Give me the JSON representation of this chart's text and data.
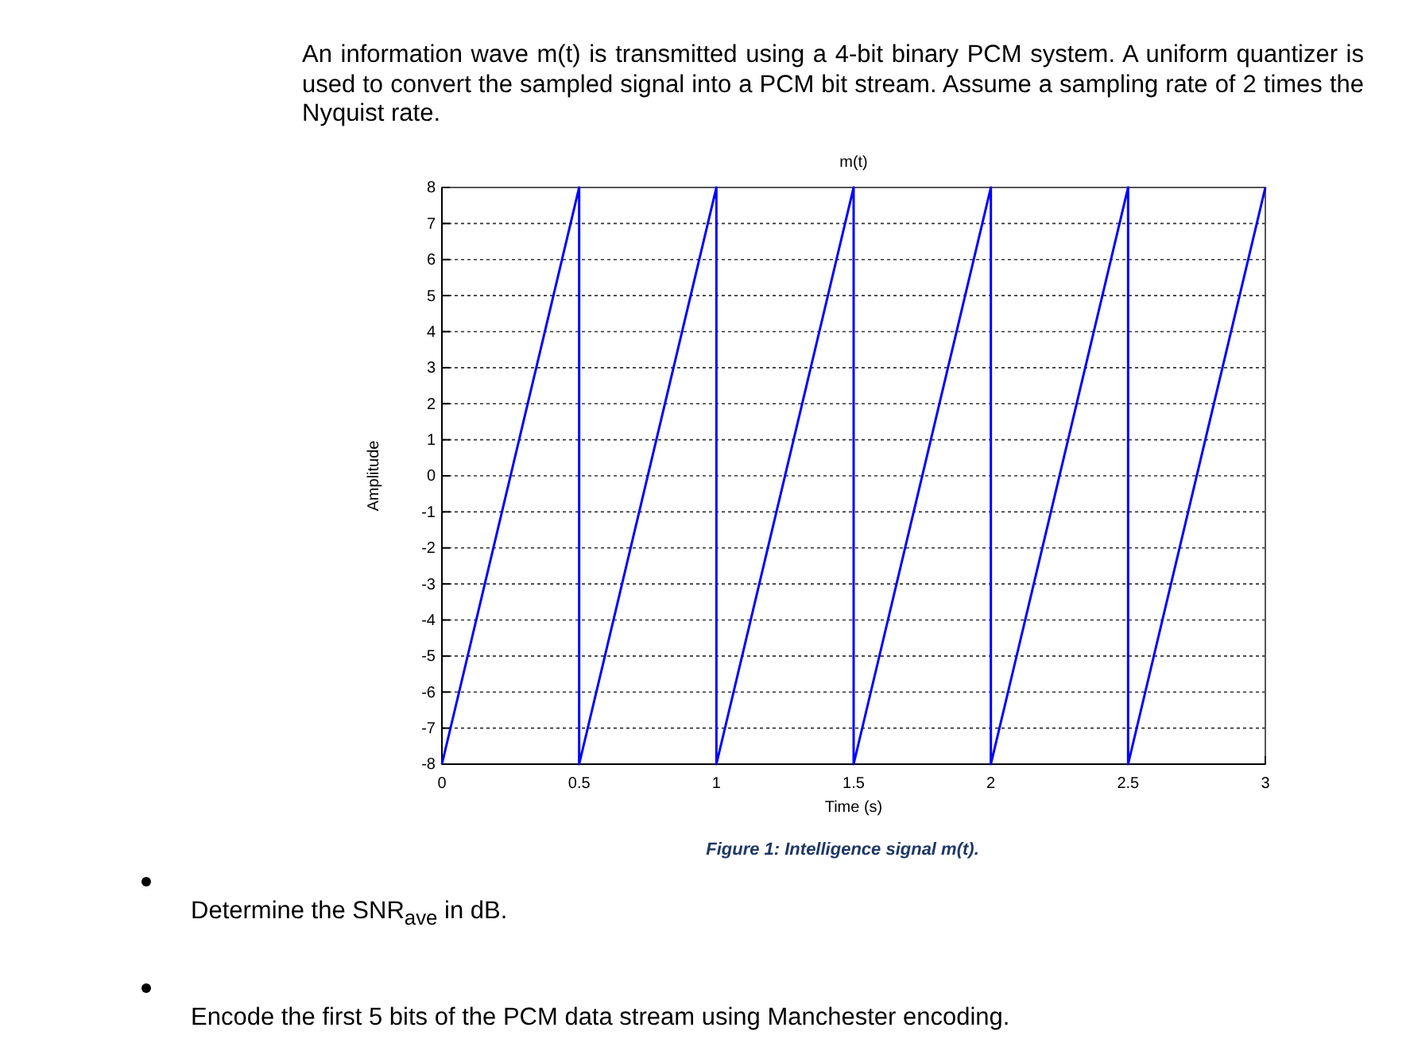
{
  "chart_data": {
    "type": "line",
    "title": "m(t)",
    "xlabel": "Time (s)",
    "ylabel": "Amplitude",
    "annotations": [
      "An information wave m(t) is transmitted using a 4-bit binary PCM system. A uniform quantizer is used to convert the sampled signal into a PCM bit stream. Assume a sampling rate of 2 times the Nyquist rate.",
      "Figure 1: Intelligence signal m(t).",
      "Determine the SNR$_{ave}$ in dB.",
      "Encode the first 5 bits of the PCM data stream using Manchester encoding."
    ],
    "series": [
      {
        "color": "#0000ff",
        "x": [
          0,
          0.5,
          0.5,
          1,
          1,
          1.5,
          1.5,
          2,
          2,
          2.5,
          2.5,
          3
        ],
        "values": [
          -8,
          8,
          -8,
          8,
          -8,
          8,
          -8,
          8,
          -8,
          8,
          -8,
          8
        ]
      }
    ],
    "xlim": [
      0,
      3
    ],
    "xticks": [
      0,
      0.5,
      1,
      1.5,
      2,
      2.5,
      3
    ],
    "ylim": [
      -8,
      8
    ],
    "yticks": [
      -8,
      -7,
      -6,
      -5,
      -4,
      -3,
      -2,
      -1,
      0,
      1,
      2,
      3,
      4,
      5,
      6,
      7,
      8
    ],
    "grid": "y",
    "marker": "none",
    "line_style": "solid"
  }
}
